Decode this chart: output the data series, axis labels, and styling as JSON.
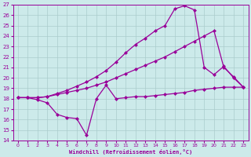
{
  "xlabel": "Windchill (Refroidissement éolien,°C)",
  "bg_color": "#cceaea",
  "grid_color": "#aacccc",
  "line_color": "#990099",
  "xlim": [
    -0.5,
    23.5
  ],
  "ylim": [
    14,
    27
  ],
  "yticks": [
    14,
    15,
    16,
    17,
    18,
    19,
    20,
    21,
    22,
    23,
    24,
    25,
    26,
    27
  ],
  "xticks": [
    0,
    1,
    2,
    3,
    4,
    5,
    6,
    7,
    8,
    9,
    10,
    11,
    12,
    13,
    14,
    15,
    16,
    17,
    18,
    19,
    20,
    21,
    22,
    23
  ],
  "series1_x": [
    0,
    1,
    2,
    3,
    4,
    5,
    6,
    7,
    8,
    9,
    10,
    11,
    12,
    13,
    14,
    15,
    16,
    17,
    18,
    19,
    20,
    21,
    22,
    23
  ],
  "series1_y": [
    18.1,
    18.1,
    17.9,
    17.6,
    16.5,
    16.2,
    16.1,
    14.5,
    18.0,
    19.3,
    18.0,
    18.1,
    18.2,
    18.2,
    18.3,
    18.4,
    18.5,
    18.6,
    18.8,
    18.9,
    19.0,
    19.1,
    19.1,
    19.1
  ],
  "series2_x": [
    0,
    1,
    2,
    3,
    4,
    5,
    6,
    7,
    8,
    9,
    10,
    11,
    12,
    13,
    14,
    15,
    16,
    17,
    18,
    19,
    20,
    21,
    22,
    23
  ],
  "series2_y": [
    18.1,
    18.1,
    18.1,
    18.2,
    18.4,
    18.6,
    18.8,
    19.0,
    19.3,
    19.6,
    20.0,
    20.4,
    20.8,
    21.2,
    21.6,
    22.0,
    22.5,
    23.0,
    23.5,
    24.0,
    24.5,
    21.0,
    20.1,
    19.1
  ],
  "series3_x": [
    0,
    1,
    2,
    3,
    4,
    5,
    6,
    7,
    8,
    9,
    10,
    11,
    12,
    13,
    14,
    15,
    16,
    17,
    18,
    19,
    20,
    21,
    22,
    23
  ],
  "series3_y": [
    18.1,
    18.1,
    18.1,
    18.2,
    18.5,
    18.8,
    19.2,
    19.6,
    20.1,
    20.7,
    21.5,
    22.4,
    23.2,
    23.8,
    24.5,
    25.0,
    26.6,
    26.9,
    26.5,
    21.0,
    20.3,
    21.1,
    20.0,
    19.1
  ],
  "markersize": 2.5,
  "linewidth": 0.9
}
